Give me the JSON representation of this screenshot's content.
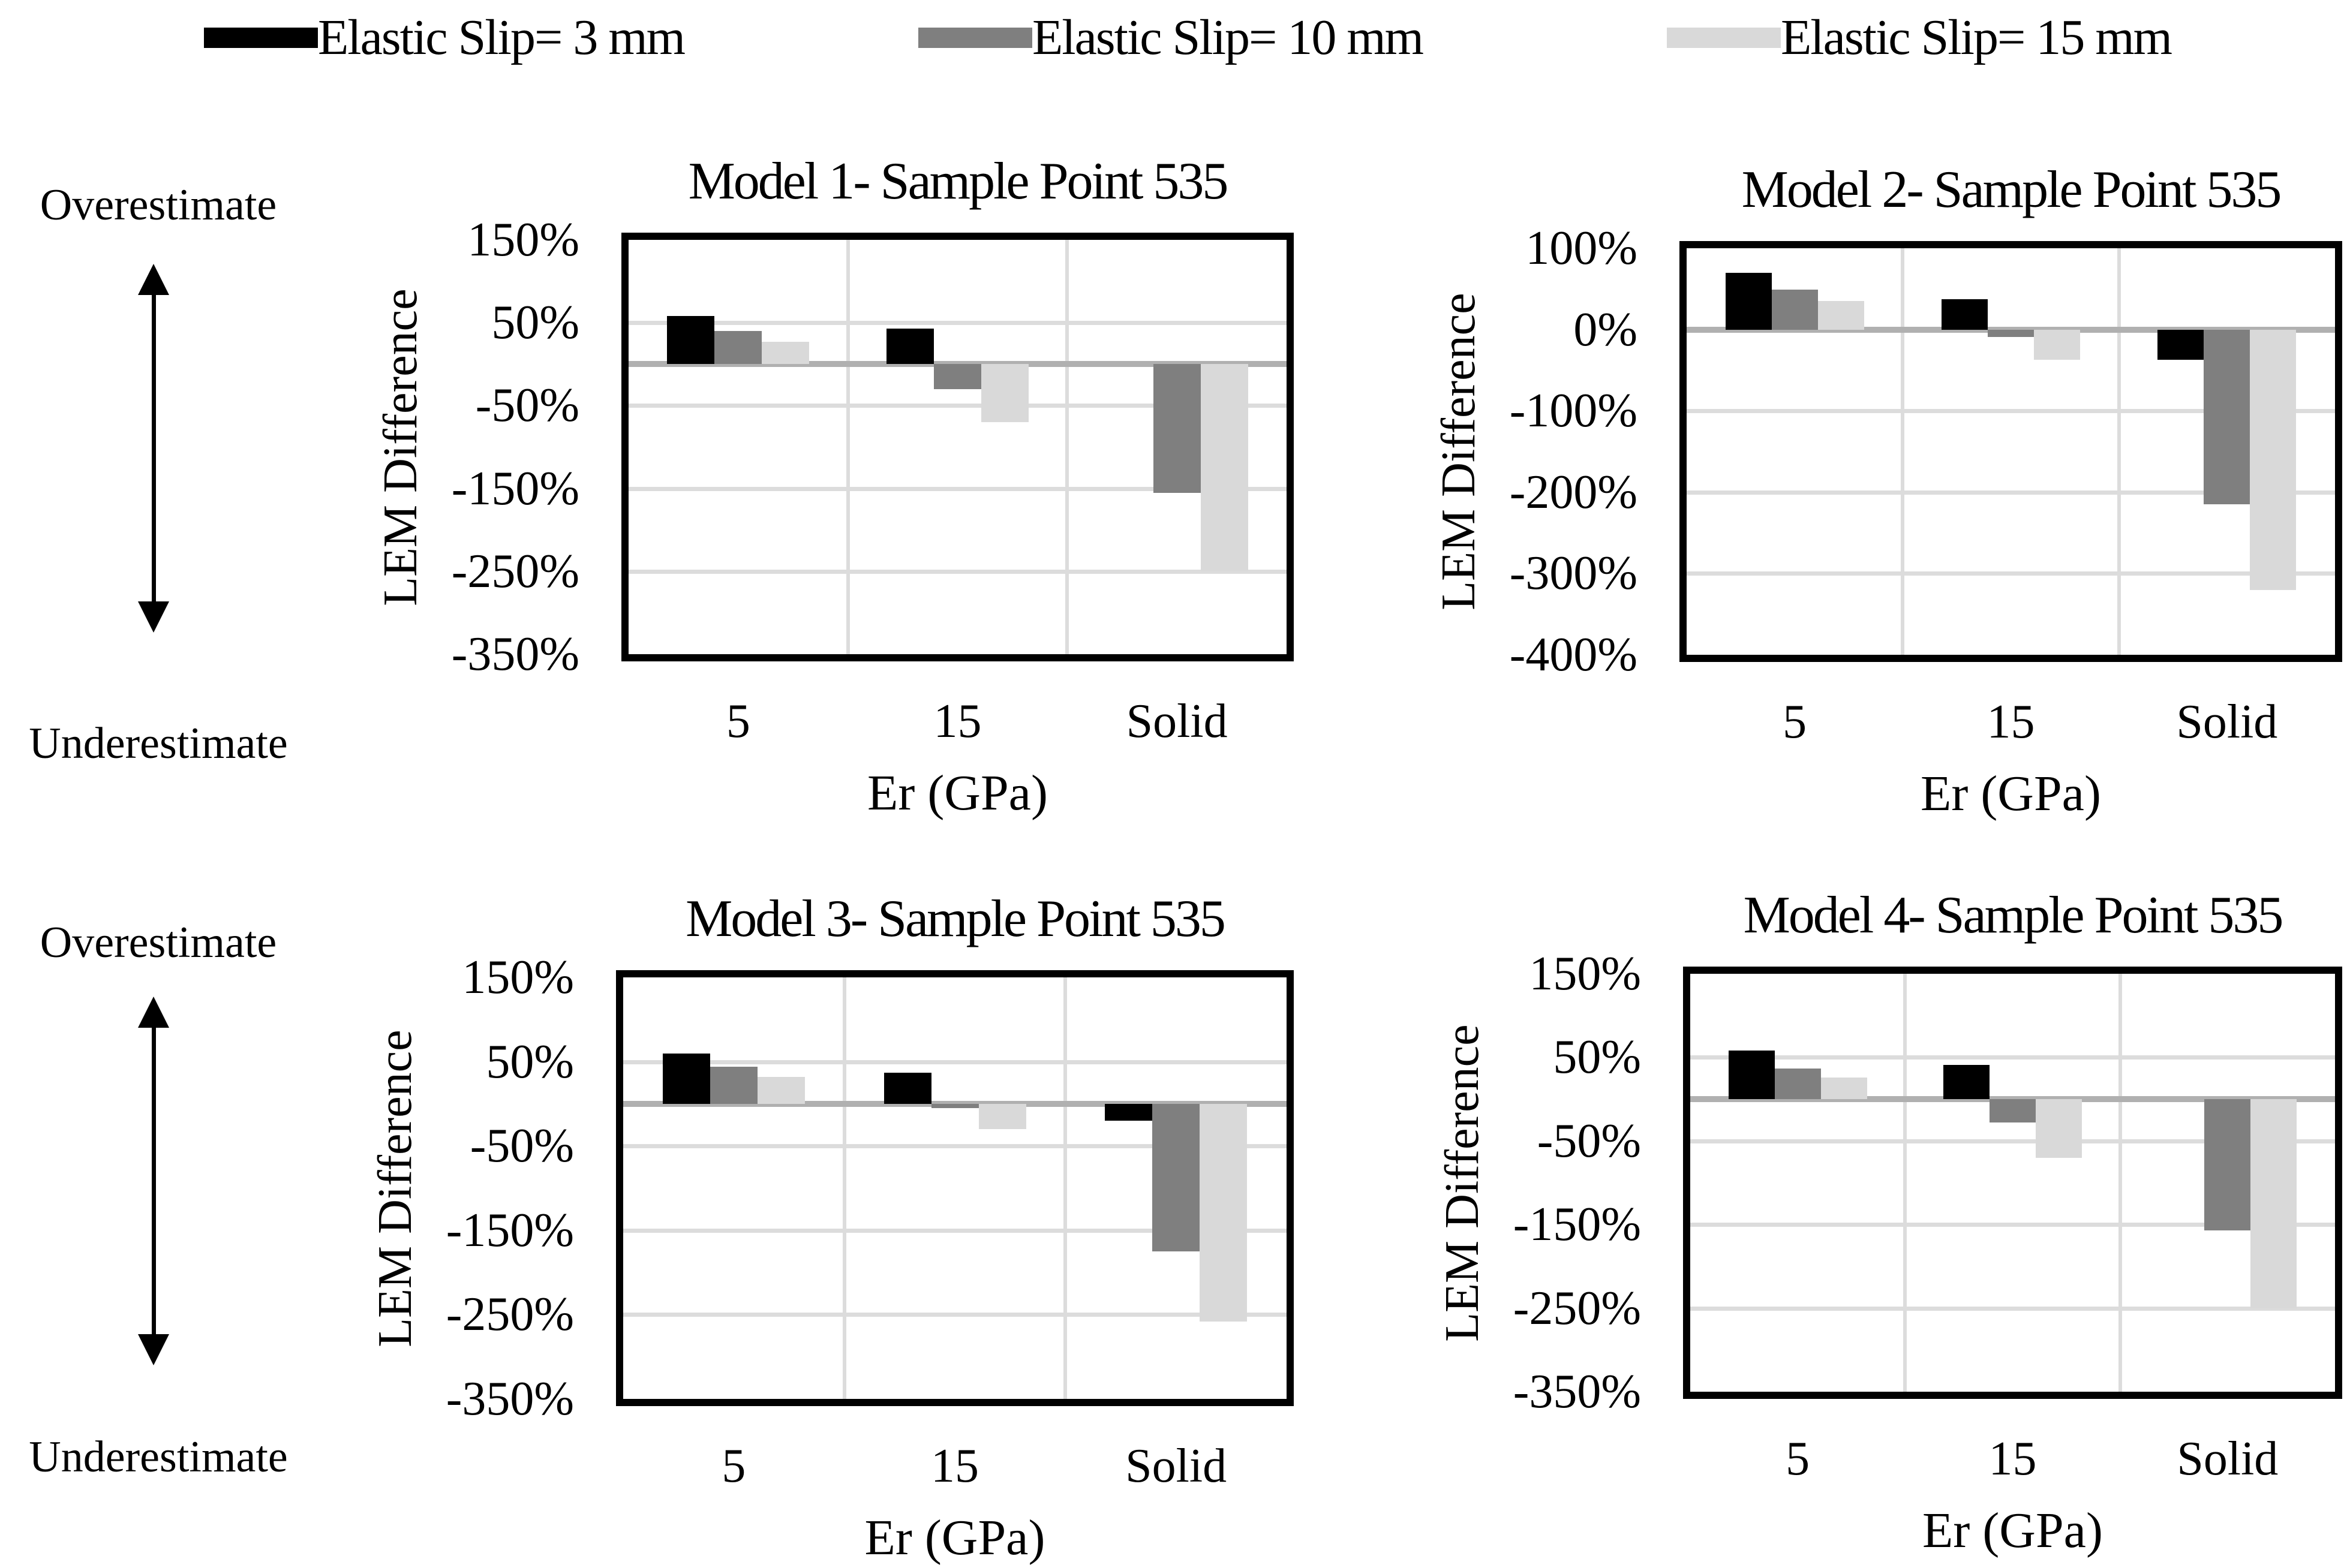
{
  "legend": {
    "items": [
      {
        "label": "Elastic Slip= 3 mm",
        "color": "#000000"
      },
      {
        "label": "Elastic Slip= 10 mm",
        "color": "#7f7f7f"
      },
      {
        "label": "Elastic Slip= 15 mm",
        "color": "#d9d9d9"
      }
    ]
  },
  "annotations": {
    "over": "Overestimate",
    "under": "Underestimate"
  },
  "colors": {
    "series": [
      "#000000",
      "#7f7f7f",
      "#d9d9d9"
    ],
    "gridline": "#dcdcdc",
    "zero_line": "#b0b0b0",
    "plot_border": "#000000"
  },
  "chart_data": [
    {
      "type": "bar",
      "title": "Model 1- Sample Point 535",
      "categories": [
        "5",
        "15",
        "Solid"
      ],
      "series": [
        {
          "name": "Elastic Slip= 3 mm",
          "values": [
            58,
            43,
            0
          ]
        },
        {
          "name": "Elastic Slip= 10 mm",
          "values": [
            40,
            -30,
            -155
          ]
        },
        {
          "name": "Elastic Slip= 15 mm",
          "values": [
            27,
            -70,
            -250
          ]
        }
      ],
      "xlabel": "Er (GPa)",
      "ylabel": "LEM Difference",
      "ylim": [
        -350,
        150
      ],
      "yticks": [
        "150%",
        "50%",
        "-50%",
        "-150%",
        "-250%",
        "-350%"
      ],
      "grid": true,
      "legend_position": "top"
    },
    {
      "type": "bar",
      "title": "Model 2- Sample Point 535",
      "categories": [
        "5",
        "15",
        "Solid"
      ],
      "series": [
        {
          "name": "Elastic Slip= 3 mm",
          "values": [
            70,
            37,
            -37
          ]
        },
        {
          "name": "Elastic Slip= 10 mm",
          "values": [
            49,
            -9,
            -215
          ]
        },
        {
          "name": "Elastic Slip= 15 mm",
          "values": [
            35,
            -37,
            -320
          ]
        }
      ],
      "xlabel": "Er (GPa)",
      "ylabel": "LEM Difference",
      "ylim": [
        -400,
        100
      ],
      "yticks": [
        "100%",
        "0%",
        "-100%",
        "-200%",
        "-300%",
        "-400%"
      ],
      "grid": true,
      "legend_position": "top"
    },
    {
      "type": "bar",
      "title": "Model 3- Sample Point 535",
      "categories": [
        "5",
        "15",
        "Solid"
      ],
      "series": [
        {
          "name": "Elastic Slip= 3 mm",
          "values": [
            60,
            37,
            -20
          ]
        },
        {
          "name": "Elastic Slip= 10 mm",
          "values": [
            44,
            -5,
            -175
          ]
        },
        {
          "name": "Elastic Slip= 15 mm",
          "values": [
            32,
            -30,
            -258
          ]
        }
      ],
      "xlabel": "Er (GPa)",
      "ylabel": "LEM Difference",
      "ylim": [
        -350,
        150
      ],
      "yticks": [
        "150%",
        "50%",
        "-50%",
        "-150%",
        "-250%",
        "-350%"
      ],
      "grid": true,
      "legend_position": "top"
    },
    {
      "type": "bar",
      "title": "Model 4- Sample Point 535",
      "categories": [
        "5",
        "15",
        "Solid"
      ],
      "series": [
        {
          "name": "Elastic Slip= 3 mm",
          "values": [
            58,
            41,
            0
          ]
        },
        {
          "name": "Elastic Slip= 10 mm",
          "values": [
            37,
            -28,
            -157
          ]
        },
        {
          "name": "Elastic Slip= 15 mm",
          "values": [
            26,
            -70,
            -250
          ]
        }
      ],
      "xlabel": "Er (GPa)",
      "ylabel": "LEM Difference",
      "ylim": [
        -350,
        150
      ],
      "yticks": [
        "150%",
        "50%",
        "-50%",
        "-150%",
        "-250%",
        "-350%"
      ],
      "grid": true,
      "legend_position": "top"
    }
  ]
}
